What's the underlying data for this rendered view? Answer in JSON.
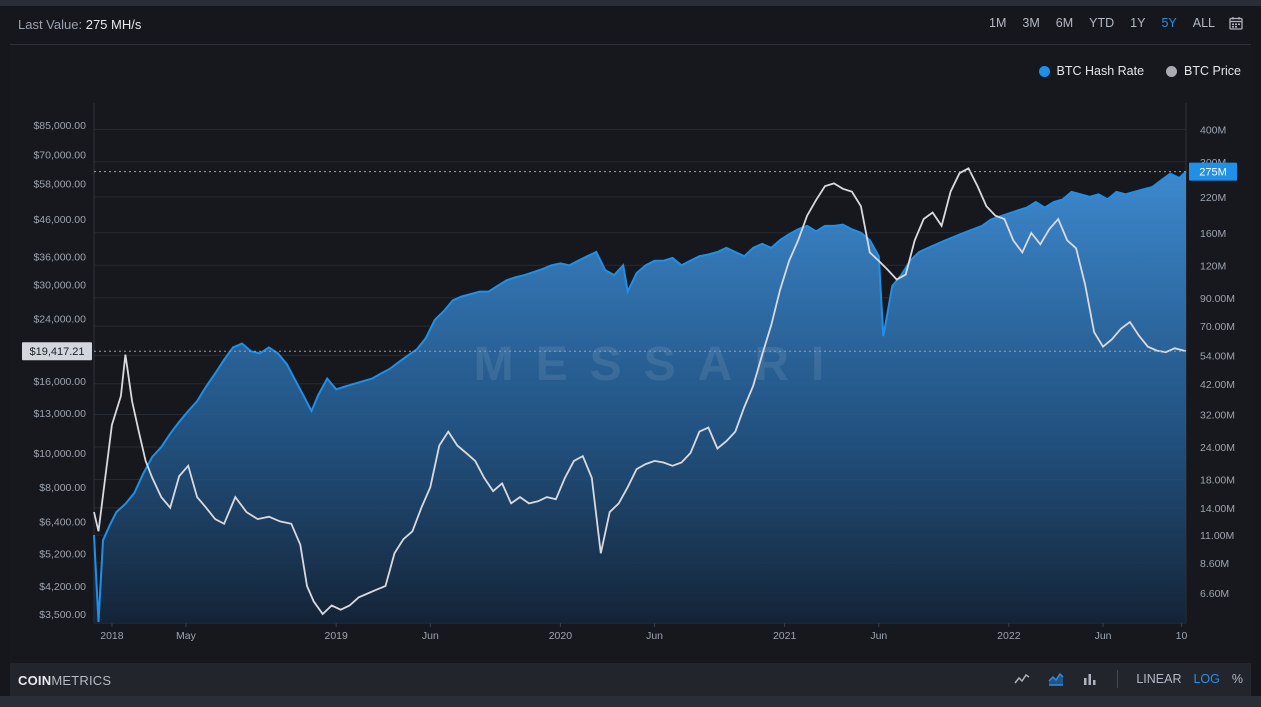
{
  "header": {
    "last_value_label": "Last Value:",
    "last_value": "275 MH/s",
    "ranges": [
      "1M",
      "3M",
      "6M",
      "YTD",
      "1Y",
      "5Y",
      "ALL"
    ],
    "active_range": "5Y"
  },
  "legend": [
    {
      "name": "BTC Hash Rate",
      "color": "#1f8fe8"
    },
    {
      "name": "BTC Price",
      "color": "#a9acb3"
    }
  ],
  "watermark": "MESSARI",
  "footer": {
    "brand_bold": "COIN",
    "brand_light": "METRICS",
    "scales": [
      "LINEAR",
      "LOG",
      "%"
    ],
    "active_scale": "LOG",
    "icons": [
      "line-chart-icon",
      "area-chart-icon",
      "bar-chart-icon"
    ]
  },
  "chart_data": {
    "type": "line",
    "log_scale": true,
    "grid": true,
    "x_ticks": [
      "2018",
      "May",
      "2019",
      "Jun",
      "2020",
      "Jun",
      "2021",
      "Jun",
      "2022",
      "Jun",
      "10"
    ],
    "left_axis": {
      "ticks": [
        "$85,000.00",
        "$70,000.00",
        "$58,000.00",
        "$46,000.00",
        "$36,000.00",
        "$30,000.00",
        "$24,000.00",
        "$16,000.00",
        "$13,000.00",
        "$10,000.00",
        "$8,000.00",
        "$6,400.00",
        "$5,200.00",
        "$4,200.00",
        "$3,500.00"
      ],
      "tick_values": [
        85000,
        70000,
        58000,
        46000,
        36000,
        30000,
        24000,
        16000,
        13000,
        10000,
        8000,
        6400,
        5200,
        4200,
        3500
      ],
      "range": [
        3300,
        98000
      ],
      "current_label": "$19,417.21",
      "current_value": 19417.21
    },
    "right_axis": {
      "ticks": [
        "400M",
        "300M",
        "220M",
        "160M",
        "120M",
        "90.00M",
        "70.00M",
        "54.00M",
        "42.00M",
        "32.00M",
        "24.00M",
        "18.00M",
        "14.00M",
        "11.00M",
        "8.60M",
        "6.60M"
      ],
      "tick_values": [
        400,
        300,
        220,
        160,
        120,
        90,
        70,
        54,
        42,
        32,
        24,
        18,
        14,
        11,
        8.6,
        6.6
      ],
      "range": [
        5.05,
        505
      ],
      "current_label": "275M",
      "current_value": 275
    },
    "x_range": [
      2017.92,
      2022.79
    ],
    "series": [
      {
        "name": "BTC Hash Rate",
        "axis": "right",
        "unit": "MH/s",
        "points": [
          [
            2017.92,
            11
          ],
          [
            2017.94,
            5.1
          ],
          [
            2017.96,
            10.5
          ],
          [
            2017.99,
            12
          ],
          [
            2018.02,
            13.5
          ],
          [
            2018.06,
            14.5
          ],
          [
            2018.1,
            16
          ],
          [
            2018.14,
            19
          ],
          [
            2018.18,
            22
          ],
          [
            2018.22,
            24
          ],
          [
            2018.26,
            27
          ],
          [
            2018.3,
            30
          ],
          [
            2018.34,
            33
          ],
          [
            2018.38,
            36
          ],
          [
            2018.42,
            41
          ],
          [
            2018.46,
            46
          ],
          [
            2018.5,
            52
          ],
          [
            2018.54,
            58
          ],
          [
            2018.58,
            60
          ],
          [
            2018.62,
            56
          ],
          [
            2018.66,
            55
          ],
          [
            2018.7,
            58
          ],
          [
            2018.74,
            55
          ],
          [
            2018.78,
            50
          ],
          [
            2018.82,
            43
          ],
          [
            2018.86,
            37
          ],
          [
            2018.89,
            33
          ],
          [
            2018.92,
            38
          ],
          [
            2018.96,
            44
          ],
          [
            2019.0,
            40
          ],
          [
            2019.04,
            41
          ],
          [
            2019.08,
            42
          ],
          [
            2019.12,
            43
          ],
          [
            2019.16,
            44
          ],
          [
            2019.2,
            46
          ],
          [
            2019.24,
            48
          ],
          [
            2019.28,
            51
          ],
          [
            2019.32,
            54
          ],
          [
            2019.36,
            57
          ],
          [
            2019.4,
            63
          ],
          [
            2019.44,
            74
          ],
          [
            2019.48,
            80
          ],
          [
            2019.52,
            88
          ],
          [
            2019.56,
            91
          ],
          [
            2019.6,
            93
          ],
          [
            2019.64,
            95
          ],
          [
            2019.68,
            95
          ],
          [
            2019.72,
            100
          ],
          [
            2019.76,
            105
          ],
          [
            2019.8,
            108
          ],
          [
            2019.84,
            110
          ],
          [
            2019.88,
            113
          ],
          [
            2019.92,
            116
          ],
          [
            2019.96,
            120
          ],
          [
            2020.0,
            122
          ],
          [
            2020.04,
            120
          ],
          [
            2020.08,
            125
          ],
          [
            2020.12,
            130
          ],
          [
            2020.16,
            135
          ],
          [
            2020.2,
            115
          ],
          [
            2020.24,
            110
          ],
          [
            2020.28,
            120
          ],
          [
            2020.3,
            95
          ],
          [
            2020.34,
            112
          ],
          [
            2020.38,
            120
          ],
          [
            2020.42,
            125
          ],
          [
            2020.46,
            125
          ],
          [
            2020.5,
            128
          ],
          [
            2020.54,
            120
          ],
          [
            2020.58,
            125
          ],
          [
            2020.62,
            130
          ],
          [
            2020.66,
            132
          ],
          [
            2020.7,
            135
          ],
          [
            2020.74,
            140
          ],
          [
            2020.78,
            135
          ],
          [
            2020.82,
            130
          ],
          [
            2020.86,
            140
          ],
          [
            2020.9,
            145
          ],
          [
            2020.94,
            140
          ],
          [
            2020.98,
            150
          ],
          [
            2021.02,
            158
          ],
          [
            2021.06,
            165
          ],
          [
            2021.1,
            170
          ],
          [
            2021.14,
            162
          ],
          [
            2021.18,
            170
          ],
          [
            2021.22,
            170
          ],
          [
            2021.26,
            172
          ],
          [
            2021.3,
            165
          ],
          [
            2021.34,
            160
          ],
          [
            2021.38,
            150
          ],
          [
            2021.42,
            130
          ],
          [
            2021.44,
            64
          ],
          [
            2021.48,
            100
          ],
          [
            2021.52,
            110
          ],
          [
            2021.56,
            125
          ],
          [
            2021.6,
            135
          ],
          [
            2021.64,
            140
          ],
          [
            2021.68,
            145
          ],
          [
            2021.72,
            150
          ],
          [
            2021.76,
            155
          ],
          [
            2021.8,
            160
          ],
          [
            2021.84,
            165
          ],
          [
            2021.88,
            170
          ],
          [
            2021.92,
            180
          ],
          [
            2021.96,
            185
          ],
          [
            2022.0,
            190
          ],
          [
            2022.04,
            195
          ],
          [
            2022.08,
            200
          ],
          [
            2022.12,
            210
          ],
          [
            2022.16,
            200
          ],
          [
            2022.2,
            210
          ],
          [
            2022.24,
            215
          ],
          [
            2022.28,
            230
          ],
          [
            2022.32,
            225
          ],
          [
            2022.36,
            220
          ],
          [
            2022.4,
            225
          ],
          [
            2022.44,
            215
          ],
          [
            2022.48,
            230
          ],
          [
            2022.52,
            225
          ],
          [
            2022.56,
            230
          ],
          [
            2022.6,
            235
          ],
          [
            2022.64,
            240
          ],
          [
            2022.68,
            255
          ],
          [
            2022.72,
            270
          ],
          [
            2022.76,
            260
          ],
          [
            2022.79,
            275
          ]
        ]
      },
      {
        "name": "BTC Price",
        "axis": "left",
        "unit": "USD",
        "points": [
          [
            2017.92,
            6800
          ],
          [
            2017.94,
            6000
          ],
          [
            2017.97,
            8500
          ],
          [
            2018.0,
            12000
          ],
          [
            2018.04,
            14500
          ],
          [
            2018.06,
            19000
          ],
          [
            2018.09,
            14000
          ],
          [
            2018.12,
            11500
          ],
          [
            2018.15,
            9500
          ],
          [
            2018.18,
            8500
          ],
          [
            2018.22,
            7500
          ],
          [
            2018.26,
            7000
          ],
          [
            2018.3,
            8600
          ],
          [
            2018.34,
            9200
          ],
          [
            2018.38,
            7500
          ],
          [
            2018.42,
            7000
          ],
          [
            2018.46,
            6500
          ],
          [
            2018.5,
            6300
          ],
          [
            2018.55,
            7500
          ],
          [
            2018.6,
            6800
          ],
          [
            2018.65,
            6500
          ],
          [
            2018.7,
            6600
          ],
          [
            2018.75,
            6400
          ],
          [
            2018.8,
            6300
          ],
          [
            2018.84,
            5500
          ],
          [
            2018.87,
            4200
          ],
          [
            2018.9,
            3800
          ],
          [
            2018.94,
            3500
          ],
          [
            2018.98,
            3700
          ],
          [
            2019.02,
            3600
          ],
          [
            2019.06,
            3700
          ],
          [
            2019.1,
            3900
          ],
          [
            2019.14,
            4000
          ],
          [
            2019.18,
            4100
          ],
          [
            2019.22,
            4200
          ],
          [
            2019.26,
            5200
          ],
          [
            2019.3,
            5700
          ],
          [
            2019.34,
            6000
          ],
          [
            2019.38,
            7000
          ],
          [
            2019.42,
            8000
          ],
          [
            2019.46,
            10500
          ],
          [
            2019.5,
            11500
          ],
          [
            2019.54,
            10500
          ],
          [
            2019.58,
            10000
          ],
          [
            2019.62,
            9500
          ],
          [
            2019.66,
            8500
          ],
          [
            2019.7,
            7800
          ],
          [
            2019.74,
            8200
          ],
          [
            2019.78,
            7200
          ],
          [
            2019.82,
            7500
          ],
          [
            2019.86,
            7200
          ],
          [
            2019.9,
            7300
          ],
          [
            2019.94,
            7500
          ],
          [
            2019.98,
            7400
          ],
          [
            2020.02,
            8500
          ],
          [
            2020.06,
            9500
          ],
          [
            2020.1,
            9800
          ],
          [
            2020.14,
            8500
          ],
          [
            2020.18,
            5200
          ],
          [
            2020.22,
            6800
          ],
          [
            2020.26,
            7200
          ],
          [
            2020.3,
            8000
          ],
          [
            2020.34,
            9000
          ],
          [
            2020.38,
            9300
          ],
          [
            2020.42,
            9500
          ],
          [
            2020.46,
            9400
          ],
          [
            2020.5,
            9200
          ],
          [
            2020.54,
            9400
          ],
          [
            2020.58,
            10000
          ],
          [
            2020.62,
            11500
          ],
          [
            2020.66,
            11800
          ],
          [
            2020.7,
            10300
          ],
          [
            2020.74,
            10800
          ],
          [
            2020.78,
            11500
          ],
          [
            2020.82,
            13500
          ],
          [
            2020.86,
            15500
          ],
          [
            2020.9,
            19000
          ],
          [
            2020.94,
            23000
          ],
          [
            2020.98,
            29000
          ],
          [
            2021.02,
            35000
          ],
          [
            2021.06,
            40000
          ],
          [
            2021.1,
            47000
          ],
          [
            2021.14,
            52000
          ],
          [
            2021.18,
            57000
          ],
          [
            2021.22,
            58000
          ],
          [
            2021.26,
            56000
          ],
          [
            2021.3,
            55000
          ],
          [
            2021.34,
            50000
          ],
          [
            2021.38,
            37000
          ],
          [
            2021.42,
            35000
          ],
          [
            2021.46,
            33000
          ],
          [
            2021.5,
            31000
          ],
          [
            2021.54,
            32000
          ],
          [
            2021.58,
            40000
          ],
          [
            2021.62,
            46000
          ],
          [
            2021.66,
            48000
          ],
          [
            2021.7,
            44000
          ],
          [
            2021.74,
            55000
          ],
          [
            2021.78,
            62000
          ],
          [
            2021.82,
            64000
          ],
          [
            2021.86,
            57000
          ],
          [
            2021.9,
            50000
          ],
          [
            2021.94,
            47000
          ],
          [
            2021.98,
            46000
          ],
          [
            2022.02,
            40000
          ],
          [
            2022.06,
            37000
          ],
          [
            2022.1,
            42000
          ],
          [
            2022.14,
            39000
          ],
          [
            2022.18,
            43000
          ],
          [
            2022.22,
            46000
          ],
          [
            2022.26,
            40000
          ],
          [
            2022.3,
            38000
          ],
          [
            2022.34,
            30000
          ],
          [
            2022.38,
            22000
          ],
          [
            2022.42,
            20000
          ],
          [
            2022.46,
            21000
          ],
          [
            2022.5,
            22500
          ],
          [
            2022.54,
            23500
          ],
          [
            2022.58,
            21500
          ],
          [
            2022.62,
            20000
          ],
          [
            2022.66,
            19500
          ],
          [
            2022.7,
            19300
          ],
          [
            2022.74,
            19800
          ],
          [
            2022.79,
            19417
          ]
        ]
      }
    ]
  }
}
